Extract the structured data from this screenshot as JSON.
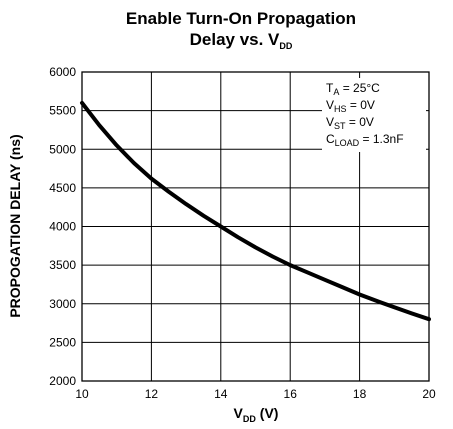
{
  "chart_data": {
    "type": "line",
    "title": {
      "line1": "Enable Turn-On Propagation",
      "line2_main": "Delay vs. V",
      "line2_sub": "DD"
    },
    "xlabel": {
      "main": "V",
      "sub": "DD",
      "suffix": " (V)"
    },
    "ylabel": "PROPOGATION DELAY (ns)",
    "xlim": [
      10,
      20
    ],
    "ylim": [
      2000,
      6000
    ],
    "xticks": [
      10,
      12,
      14,
      16,
      18,
      20
    ],
    "yticks": [
      2000,
      2500,
      3000,
      3500,
      4000,
      4500,
      5000,
      5500,
      6000
    ],
    "grid": true,
    "annotations": [
      {
        "main": "T",
        "sub": "A",
        "rest": " = 25°C"
      },
      {
        "main": "V",
        "sub": "HS",
        "rest": " = 0V"
      },
      {
        "main": "V",
        "sub": "ST",
        "rest": " = 0V"
      },
      {
        "main": "C",
        "sub": "LOAD",
        "rest": " = 1.3nF"
      }
    ],
    "series": [
      {
        "x": [
          10,
          10.5,
          11,
          11.5,
          12,
          12.5,
          13,
          13.5,
          14,
          14.5,
          15,
          15.5,
          16,
          16.5,
          17,
          17.5,
          18,
          18.5,
          19,
          19.5,
          20
        ],
        "y": [
          5600,
          5310,
          5050,
          4820,
          4620,
          4450,
          4290,
          4140,
          4000,
          3860,
          3730,
          3610,
          3500,
          3405,
          3310,
          3215,
          3120,
          3035,
          2955,
          2875,
          2800
        ]
      }
    ]
  }
}
